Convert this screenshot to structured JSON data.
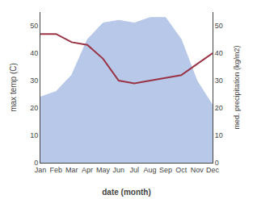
{
  "chart_data": {
    "type": "line",
    "categories": [
      "Jan",
      "Feb",
      "Mar",
      "Apr",
      "May",
      "Jun",
      "Jul",
      "Aug",
      "Sep",
      "Oct",
      "Nov",
      "Dec"
    ],
    "series": [
      {
        "name": "max temp (C)",
        "type": "area",
        "color": "#b8c8e8",
        "values": [
          24,
          26,
          32,
          45,
          51,
          52,
          51,
          53,
          53,
          45,
          30,
          21
        ]
      },
      {
        "name": "med. precipitation (kg/m2)",
        "type": "line",
        "axis": "y2",
        "color": "#993344",
        "values": [
          47,
          47,
          44,
          43,
          38,
          30,
          29,
          30,
          31,
          32,
          36,
          40
        ]
      }
    ],
    "xlabel": "date (month)",
    "ylabel": "max temp (C)",
    "y2label": "med. precipitation (kg/m2)",
    "ylim": [
      0,
      55
    ],
    "yticks": [
      0,
      10,
      20,
      30,
      40,
      50
    ],
    "y2lim": [
      0,
      55
    ],
    "y2ticks": [
      0,
      10,
      20,
      30,
      40,
      50
    ],
    "grid": false
  }
}
